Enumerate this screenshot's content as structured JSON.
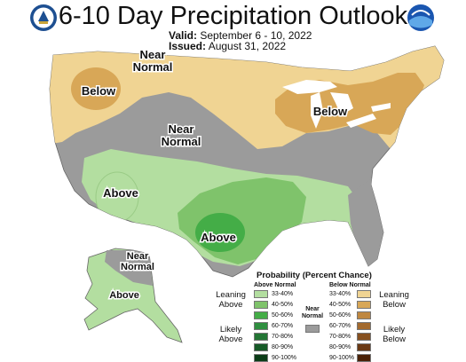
{
  "title": "6-10 Day Precipitation Outlook",
  "valid": {
    "label": "Valid:",
    "value": "September 6 - 10, 2022"
  },
  "issued": {
    "label": "Issued:",
    "value": "August 31, 2022"
  },
  "logos": {
    "left": "department-of-commerce-seal",
    "right": "noaa-logo"
  },
  "map_labels": {
    "near_normal_nw": [
      "Near",
      "Normal"
    ],
    "near_normal_central": [
      "Near",
      "Normal"
    ],
    "near_normal_alaska": [
      "Near",
      "Normal"
    ],
    "below_nw": "Below",
    "below_ne": "Below",
    "above_sw": "Above",
    "above_tx": "Above",
    "above_alaska": "Above"
  },
  "colors": {
    "land_gray": "#989898",
    "near_normal": "#9b9b9b",
    "below_33_40": "#f0d493",
    "below_40_50": "#d8a757",
    "above_33_40": "#b3dea0",
    "above_40_50": "#7fc36b",
    "above_50_60": "#44ad47",
    "water": "#ffffff",
    "border": "#ffffff"
  },
  "legend": {
    "title": "Probability (Percent Chance)",
    "above_header": "Above Normal",
    "below_header": "Below Normal",
    "near_normal": [
      "Near",
      "Normal"
    ],
    "above_bins": [
      {
        "label": "33-40%",
        "color": "#b3dea0"
      },
      {
        "label": "40-50%",
        "color": "#7fc36b"
      },
      {
        "label": "50-60%",
        "color": "#44ad47"
      },
      {
        "label": "60-70%",
        "color": "#2f8f3f"
      },
      {
        "label": "70-80%",
        "color": "#237534"
      },
      {
        "label": "80-90%",
        "color": "#165a27"
      },
      {
        "label": "90-100%",
        "color": "#0b3c17"
      }
    ],
    "below_bins": [
      {
        "label": "33-40%",
        "color": "#f0d493"
      },
      {
        "label": "40-50%",
        "color": "#d8a757"
      },
      {
        "label": "50-60%",
        "color": "#bf8740"
      },
      {
        "label": "60-70%",
        "color": "#a36a2e"
      },
      {
        "label": "70-80%",
        "color": "#86501f"
      },
      {
        "label": "80-90%",
        "color": "#6a3914"
      },
      {
        "label": "90-100%",
        "color": "#4a2208"
      }
    ],
    "near_color": "#9b9b9b",
    "leaning_above": [
      "Leaning",
      "Above"
    ],
    "likely_above": [
      "Likely",
      "Above"
    ],
    "leaning_below": [
      "Leaning",
      "Below"
    ],
    "likely_below": [
      "Likely",
      "Below"
    ]
  }
}
